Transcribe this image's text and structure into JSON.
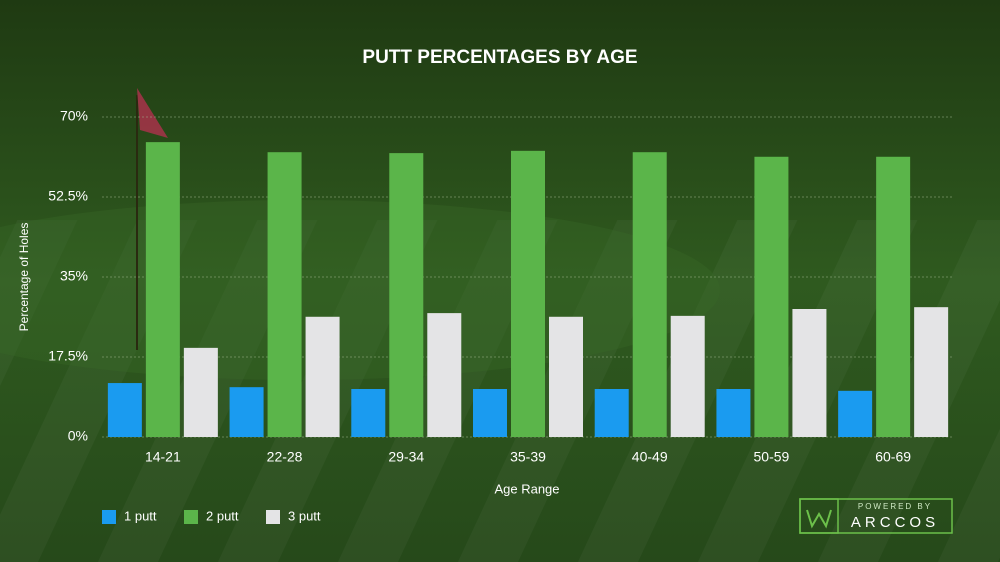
{
  "chart_data": {
    "type": "bar",
    "title": "PUTT PERCENTAGES BY AGE",
    "x_label": "Age Range",
    "y_label": "Percentage of Holes",
    "categories": [
      "14-21",
      "22-28",
      "29-34",
      "35-39",
      "40-49",
      "50-59",
      "60-69"
    ],
    "series": [
      {
        "name": "1 putt",
        "color": "#1a9bf0",
        "values": [
          11.8,
          10.9,
          10.5,
          10.5,
          10.5,
          10.5,
          10.1
        ]
      },
      {
        "name": "2 putt",
        "color": "#5bb54a",
        "values": [
          64.5,
          62.3,
          62.1,
          62.6,
          62.3,
          61.3,
          61.3
        ]
      },
      {
        "name": "3 putt",
        "color": "#e4e4e6",
        "values": [
          19.5,
          26.3,
          27.1,
          26.3,
          26.5,
          28.0,
          28.4
        ]
      }
    ],
    "ylim": [
      0,
      70
    ],
    "yticks": [
      {
        "value": 0,
        "label": "0%"
      },
      {
        "value": 17.5,
        "label": "17.5%"
      },
      {
        "value": 35,
        "label": "35%"
      },
      {
        "value": 52.5,
        "label": "52.5%"
      },
      {
        "value": 70,
        "label": "70%"
      }
    ],
    "grid": true,
    "legend": "bottom-left"
  },
  "branding": {
    "top": "POWERED BY",
    "name": "ARCCOS"
  }
}
